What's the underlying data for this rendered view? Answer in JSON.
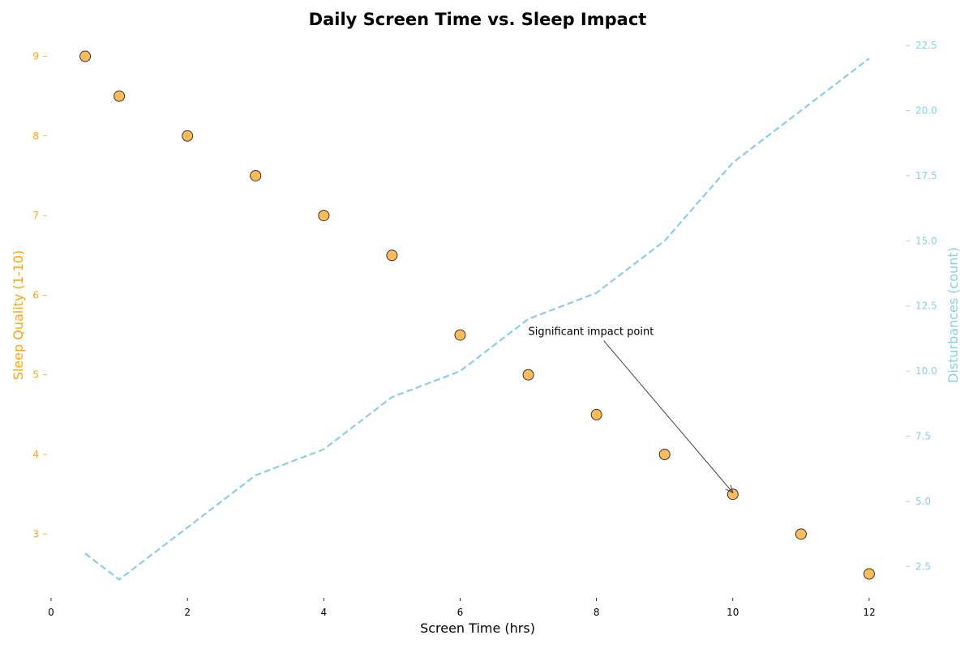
{
  "chart_data": {
    "type": "scatter",
    "title": "Daily Screen Time vs. Sleep Impact",
    "xlabel": "Screen Time (hrs)",
    "ylabel_left": "Sleep Quality (1-10)",
    "ylabel_right": "Disturbances (count)",
    "xlim": [
      0,
      12.5
    ],
    "ylim_left": [
      2.2,
      9.3
    ],
    "ylim_right": [
      1.3,
      23.0
    ],
    "x_ticks": [
      0,
      2,
      4,
      6,
      8,
      10,
      12
    ],
    "y_left_ticks": [
      3,
      4,
      5,
      6,
      7,
      8,
      9
    ],
    "y_right_ticks": [
      2.5,
      5.0,
      7.5,
      10.0,
      12.5,
      15.0,
      17.5,
      20.0,
      22.5
    ],
    "grid": false,
    "colors": {
      "scatter": "#FFB84D",
      "scatter_edge": "#333333",
      "line": "#87CEEB",
      "left_axis": "#FFA500",
      "right_axis": "#87CEEB"
    },
    "series": [
      {
        "kind": "scatter",
        "axis": "left",
        "x": [
          0.5,
          1,
          2,
          3,
          4,
          5,
          6,
          7,
          8,
          9,
          10,
          11,
          12
        ],
        "y": [
          9,
          8.5,
          8,
          7.5,
          7,
          6.5,
          5.5,
          5,
          4.5,
          4,
          3.5,
          3,
          2.5
        ]
      },
      {
        "kind": "line",
        "axis": "right",
        "style": "dashed",
        "x": [
          0.5,
          1,
          2,
          3,
          4,
          5,
          6,
          7,
          8,
          9,
          10,
          11,
          12
        ],
        "y": [
          3,
          2,
          4,
          6,
          7,
          9,
          10,
          12,
          13,
          15,
          18,
          20,
          22
        ]
      }
    ],
    "annotation": {
      "text": "Significant impact point",
      "xy": [
        10,
        3.5
      ],
      "xytext": [
        7,
        5.5
      ]
    }
  }
}
